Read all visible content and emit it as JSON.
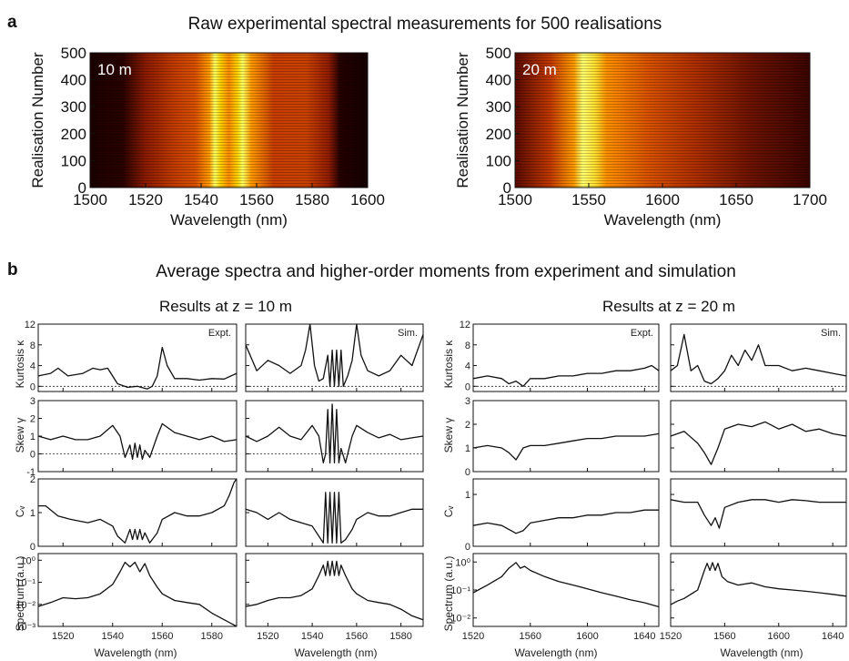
{
  "panel_a": {
    "letter": "a",
    "title": "Raw experimental spectral measurements for 500 realisations",
    "ylabel": "Realisation Number",
    "xlabel": "Wavelength (nm)"
  },
  "panel_b": {
    "letter": "b",
    "title": "Average spectra and higher-order moments from experiment and simulation",
    "group_10m": "Results at z = 10 m",
    "group_20m": "Results at z = 20 m",
    "xlabel": "Wavelength (nm)",
    "row_labels": [
      "Kurtosis κ",
      "Skew γ",
      "Cᵥ",
      "Spectrum (a.u.)"
    ],
    "expt_tag": "Expt.",
    "sim_tag": "Sim."
  },
  "chart_data": [
    {
      "id": "a-10m",
      "type": "heatmap",
      "inset_label": "10 m",
      "xlim": [
        1500,
        1600
      ],
      "xticks": [
        1500,
        1520,
        1540,
        1560,
        1580,
        1600
      ],
      "ylim": [
        0,
        500
      ],
      "yticks": [
        0,
        100,
        200,
        300,
        400,
        500
      ],
      "xlabel": "Wavelength (nm)",
      "ylabel": "Realisation Number",
      "colormap": "hot",
      "bright_bands_nm": [
        [
          1543,
          1547
        ],
        [
          1553,
          1557
        ]
      ],
      "signal_range_nm": [
        1512,
        1588
      ]
    },
    {
      "id": "a-20m",
      "type": "heatmap",
      "inset_label": "20 m",
      "xlim": [
        1500,
        1700
      ],
      "xticks": [
        1500,
        1550,
        1600,
        1650,
        1700
      ],
      "ylim": [
        0,
        500
      ],
      "yticks": [
        0,
        100,
        200,
        300,
        400,
        500
      ],
      "xlabel": "Wavelength (nm)",
      "ylabel": "Realisation Number",
      "colormap": "hot",
      "bright_bands_nm": [
        [
          1546,
          1553
        ]
      ],
      "signal_range_nm": [
        1500,
        1700
      ]
    },
    {
      "id": "b-10m-kurt-expt",
      "type": "line",
      "tag": "Expt.",
      "ylim": [
        -1,
        12
      ],
      "yticks": [
        0,
        4,
        8,
        12
      ],
      "dotted_zero": true,
      "xlim": [
        1510,
        1590
      ],
      "x": [
        1510,
        1515,
        1518,
        1522,
        1528,
        1532,
        1535,
        1538,
        1542,
        1546,
        1550,
        1554,
        1556,
        1558,
        1560,
        1562,
        1565,
        1570,
        1575,
        1580,
        1585,
        1590
      ],
      "y": [
        2,
        2.5,
        3.5,
        2,
        2.5,
        3.5,
        3.2,
        3.5,
        0.5,
        -0.2,
        0,
        -0.5,
        0,
        2,
        7.5,
        4,
        1.5,
        1.5,
        1.2,
        1.5,
        1.4,
        2.5
      ]
    },
    {
      "id": "b-10m-kurt-sim",
      "type": "line",
      "tag": "Sim.",
      "ylim": [
        -1,
        12
      ],
      "yticks": [
        0,
        4,
        8,
        12
      ],
      "dotted_zero": true,
      "xlim": [
        1510,
        1590
      ],
      "x": [
        1510,
        1515,
        1520,
        1525,
        1530,
        1535,
        1537,
        1539,
        1541,
        1543,
        1545,
        1547,
        1548,
        1549,
        1550,
        1551,
        1552,
        1553,
        1554,
        1556,
        1558,
        1560,
        1562,
        1565,
        1570,
        1575,
        1580,
        1585,
        1590
      ],
      "y": [
        8,
        3,
        5,
        4,
        2.5,
        4,
        7,
        12,
        4,
        1,
        1.5,
        6,
        0,
        7,
        0,
        7,
        0,
        7,
        0,
        2,
        5,
        12,
        6,
        3,
        2,
        3,
        6,
        4,
        10
      ]
    },
    {
      "id": "b-10m-skew-expt",
      "type": "line",
      "ylim": [
        -1,
        3
      ],
      "yticks": [
        -1,
        0,
        1,
        2,
        3
      ],
      "dotted_zero": true,
      "xlim": [
        1510,
        1590
      ],
      "x": [
        1510,
        1515,
        1520,
        1525,
        1530,
        1535,
        1540,
        1543,
        1545,
        1547,
        1548,
        1549,
        1550,
        1551,
        1552,
        1553,
        1555,
        1558,
        1560,
        1565,
        1570,
        1575,
        1580,
        1585,
        1590
      ],
      "y": [
        1,
        0.8,
        1,
        0.8,
        0.8,
        1,
        1.6,
        1,
        -0.2,
        0.5,
        -0.3,
        0.6,
        -0.2,
        0.5,
        -0.3,
        0.2,
        -0.2,
        1,
        1.7,
        1.2,
        1,
        0.8,
        1,
        0.7,
        0.8
      ]
    },
    {
      "id": "b-10m-skew-sim",
      "type": "line",
      "ylim": [
        -1,
        3
      ],
      "yticks": [
        -1,
        0,
        1,
        2,
        3
      ],
      "dotted_zero": true,
      "xlim": [
        1510,
        1590
      ],
      "x": [
        1510,
        1515,
        1520,
        1525,
        1530,
        1535,
        1540,
        1543,
        1545,
        1546,
        1547,
        1548,
        1549,
        1550,
        1551,
        1552,
        1553,
        1555,
        1558,
        1560,
        1565,
        1570,
        1575,
        1580,
        1585,
        1590
      ],
      "y": [
        1,
        0.7,
        1,
        1.5,
        1,
        0.8,
        1.6,
        1,
        -0.5,
        0,
        2.5,
        -0.5,
        2.8,
        -0.5,
        2.5,
        -0.5,
        0.3,
        -0.5,
        1,
        1.6,
        1.2,
        0.9,
        1.1,
        0.8,
        0.9,
        1
      ]
    },
    {
      "id": "b-10m-cv-expt",
      "type": "line",
      "ylim": [
        0,
        2
      ],
      "yticks": [
        0,
        1,
        2
      ],
      "xlim": [
        1510,
        1590
      ],
      "x": [
        1510,
        1513,
        1518,
        1523,
        1530,
        1535,
        1540,
        1542,
        1545,
        1547,
        1548,
        1549,
        1550,
        1551,
        1552,
        1553,
        1555,
        1558,
        1560,
        1565,
        1570,
        1575,
        1580,
        1585,
        1587,
        1589,
        1590
      ],
      "y": [
        1.2,
        1.2,
        0.9,
        0.8,
        0.7,
        0.8,
        0.6,
        0.3,
        0.1,
        0.5,
        0.2,
        0.5,
        0.2,
        0.5,
        0.2,
        0.4,
        0.1,
        0.4,
        0.8,
        1,
        0.9,
        0.9,
        1,
        1.2,
        1.5,
        1.9,
        2
      ]
    },
    {
      "id": "b-10m-cv-sim",
      "type": "line",
      "ylim": [
        0,
        2
      ],
      "yticks": [
        0,
        1,
        2
      ],
      "xlim": [
        1510,
        1590
      ],
      "x": [
        1510,
        1515,
        1520,
        1525,
        1530,
        1535,
        1540,
        1543,
        1545,
        1546,
        1547,
        1548,
        1549,
        1550,
        1551,
        1552,
        1553,
        1555,
        1558,
        1560,
        1565,
        1570,
        1575,
        1580,
        1585,
        1590
      ],
      "y": [
        1.1,
        1,
        0.8,
        1,
        0.8,
        0.7,
        0.6,
        0.3,
        0.1,
        1.6,
        0.1,
        1.6,
        0.1,
        1.6,
        0.1,
        1.6,
        0.1,
        0.2,
        0.5,
        0.8,
        1,
        0.9,
        0.9,
        1,
        1.1,
        1.1
      ]
    },
    {
      "id": "b-10m-spec-expt",
      "type": "line",
      "yscale": "log",
      "ylim": [
        0.001,
        2
      ],
      "yticks": [
        0.001,
        0.01,
        0.1,
        1
      ],
      "yticklabels": [
        "10⁻³",
        "10⁻²",
        "10⁻¹",
        "10⁰"
      ],
      "xlim": [
        1510,
        1590
      ],
      "x": [
        1510,
        1515,
        1520,
        1525,
        1530,
        1535,
        1540,
        1543,
        1545,
        1547,
        1549,
        1551,
        1553,
        1555,
        1558,
        1560,
        1565,
        1570,
        1575,
        1580,
        1585,
        1590
      ],
      "y": [
        0.008,
        0.012,
        0.02,
        0.018,
        0.02,
        0.03,
        0.08,
        0.3,
        0.8,
        0.5,
        0.8,
        0.3,
        0.7,
        0.2,
        0.06,
        0.03,
        0.015,
        0.012,
        0.01,
        0.004,
        0.002,
        0.001
      ]
    },
    {
      "id": "b-10m-spec-sim",
      "type": "line",
      "yscale": "log",
      "ylim": [
        0.001,
        2
      ],
      "yticks": [
        0.001,
        0.01,
        0.1,
        1
      ],
      "yticklabels": [
        "10⁻³",
        "10⁻²",
        "10⁻¹",
        "10⁰"
      ],
      "xlim": [
        1510,
        1590
      ],
      "x": [
        1510,
        1515,
        1520,
        1525,
        1530,
        1535,
        1540,
        1543,
        1545,
        1546,
        1547,
        1548,
        1549,
        1550,
        1551,
        1552,
        1553,
        1555,
        1558,
        1560,
        1565,
        1570,
        1575,
        1580,
        1585,
        1590
      ],
      "y": [
        0.008,
        0.01,
        0.015,
        0.02,
        0.02,
        0.025,
        0.05,
        0.2,
        0.6,
        0.2,
        0.9,
        0.2,
        0.9,
        0.2,
        0.9,
        0.2,
        0.6,
        0.2,
        0.05,
        0.03,
        0.015,
        0.012,
        0.01,
        0.006,
        0.003,
        0.002
      ]
    },
    {
      "id": "b-20m-kurt-expt",
      "type": "line",
      "tag": "Expt.",
      "ylim": [
        -1,
        12
      ],
      "yticks": [
        0,
        4,
        8,
        12
      ],
      "dotted_zero": true,
      "xlim": [
        1520,
        1650
      ],
      "x": [
        1520,
        1530,
        1540,
        1545,
        1550,
        1555,
        1560,
        1570,
        1580,
        1590,
        1600,
        1610,
        1620,
        1630,
        1640,
        1645,
        1650
      ],
      "y": [
        1.5,
        2,
        1.5,
        0.5,
        1,
        0,
        1.5,
        1.5,
        2,
        2,
        2.5,
        2.5,
        3,
        3,
        3.5,
        4,
        3
      ]
    },
    {
      "id": "b-20m-kurt-sim",
      "type": "line",
      "tag": "Sim.",
      "ylim": [
        -1,
        12
      ],
      "yticks": [
        0,
        4,
        8,
        12
      ],
      "dotted_zero": true,
      "xlim": [
        1520,
        1650
      ],
      "x": [
        1520,
        1525,
        1530,
        1535,
        1540,
        1545,
        1550,
        1555,
        1560,
        1565,
        1570,
        1575,
        1580,
        1585,
        1590,
        1600,
        1610,
        1620,
        1630,
        1640,
        1650
      ],
      "y": [
        3,
        4,
        10,
        3,
        4,
        1,
        0.5,
        1.5,
        3,
        6,
        4,
        7,
        5,
        8,
        4,
        4,
        3,
        3.5,
        3,
        2.5,
        2
      ]
    },
    {
      "id": "b-20m-skew-expt",
      "type": "line",
      "ylim": [
        0,
        3
      ],
      "yticks": [
        0,
        1,
        2,
        3
      ],
      "xlim": [
        1520,
        1650
      ],
      "x": [
        1520,
        1530,
        1540,
        1545,
        1550,
        1555,
        1560,
        1570,
        1580,
        1590,
        1600,
        1610,
        1620,
        1630,
        1640,
        1650
      ],
      "y": [
        1,
        1.1,
        1,
        0.8,
        0.5,
        1,
        1.1,
        1.1,
        1.2,
        1.3,
        1.4,
        1.4,
        1.5,
        1.5,
        1.5,
        1.6
      ]
    },
    {
      "id": "b-20m-skew-sim",
      "type": "line",
      "ylim": [
        0,
        3
      ],
      "yticks": [
        0,
        1,
        2,
        3
      ],
      "xlim": [
        1520,
        1650
      ],
      "x": [
        1520,
        1530,
        1540,
        1545,
        1550,
        1555,
        1560,
        1570,
        1580,
        1590,
        1600,
        1610,
        1620,
        1630,
        1640,
        1650
      ],
      "y": [
        1.5,
        1.7,
        1.2,
        0.8,
        0.3,
        1,
        1.8,
        2,
        1.9,
        2.1,
        1.8,
        2,
        1.7,
        1.8,
        1.6,
        1.5
      ]
    },
    {
      "id": "b-20m-cv-expt",
      "type": "line",
      "ylim": [
        0,
        1.3
      ],
      "yticks": [
        0,
        1
      ],
      "xlim": [
        1520,
        1650
      ],
      "x": [
        1520,
        1530,
        1540,
        1550,
        1555,
        1560,
        1570,
        1580,
        1590,
        1600,
        1610,
        1620,
        1630,
        1640,
        1650
      ],
      "y": [
        0.4,
        0.45,
        0.4,
        0.25,
        0.3,
        0.45,
        0.5,
        0.55,
        0.55,
        0.6,
        0.6,
        0.65,
        0.65,
        0.7,
        0.7
      ]
    },
    {
      "id": "b-20m-cv-sim",
      "type": "line",
      "ylim": [
        0,
        1.3
      ],
      "yticks": [
        0,
        1
      ],
      "xlim": [
        1520,
        1650
      ],
      "x": [
        1520,
        1530,
        1540,
        1545,
        1550,
        1553,
        1556,
        1560,
        1570,
        1580,
        1590,
        1600,
        1610,
        1620,
        1630,
        1640,
        1650
      ],
      "y": [
        0.9,
        0.85,
        0.85,
        0.6,
        0.4,
        0.55,
        0.35,
        0.75,
        0.85,
        0.9,
        0.9,
        0.85,
        0.9,
        0.88,
        0.85,
        0.85,
        0.85
      ]
    },
    {
      "id": "b-20m-spec-expt",
      "type": "line",
      "yscale": "log",
      "ylim": [
        0.005,
        2
      ],
      "yticks": [
        0.01,
        0.1,
        1
      ],
      "yticklabels": [
        "10⁻²",
        "10⁻¹",
        "10⁰"
      ],
      "xlim": [
        1520,
        1650
      ],
      "x": [
        1520,
        1530,
        1540,
        1545,
        1550,
        1553,
        1556,
        1560,
        1570,
        1580,
        1590,
        1600,
        1610,
        1620,
        1630,
        1640,
        1650
      ],
      "y": [
        0.08,
        0.15,
        0.3,
        0.6,
        0.95,
        0.6,
        0.7,
        0.5,
        0.3,
        0.2,
        0.15,
        0.11,
        0.08,
        0.06,
        0.045,
        0.035,
        0.025
      ]
    },
    {
      "id": "b-20m-spec-sim",
      "type": "line",
      "yscale": "log",
      "ylim": [
        0.005,
        2
      ],
      "yticks": [
        0.01,
        0.1,
        1
      ],
      "yticklabels": [
        "10⁻²",
        "10⁻¹",
        "10⁰"
      ],
      "xlim": [
        1520,
        1650
      ],
      "x": [
        1520,
        1525,
        1530,
        1540,
        1545,
        1547,
        1549,
        1551,
        1553,
        1555,
        1558,
        1562,
        1570,
        1580,
        1590,
        1600,
        1610,
        1620,
        1630,
        1640,
        1650
      ],
      "y": [
        0.03,
        0.04,
        0.05,
        0.1,
        0.5,
        0.9,
        0.5,
        0.95,
        0.5,
        0.9,
        0.3,
        0.2,
        0.15,
        0.18,
        0.13,
        0.11,
        0.1,
        0.09,
        0.08,
        0.07,
        0.06
      ]
    }
  ]
}
